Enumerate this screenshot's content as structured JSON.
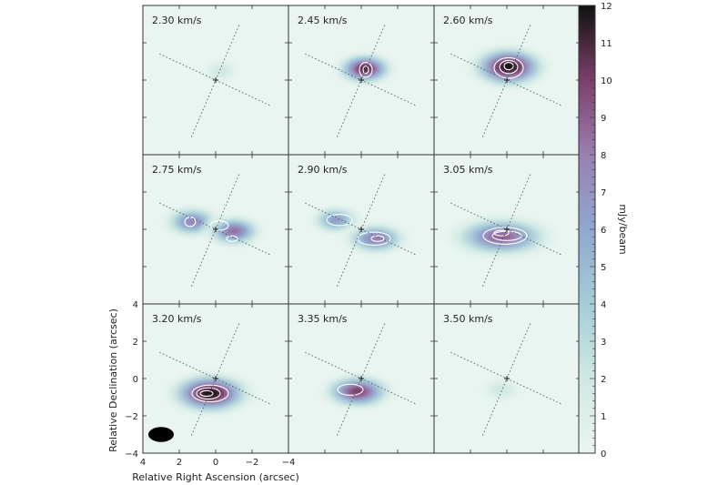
{
  "chart_data": {
    "type": "heatmap",
    "layout": "3x3 channel-map grid",
    "xlabel": "Relative Right Ascension (arcsec)",
    "ylabel": "Relative Declination (arcsec)",
    "xlim": [
      4,
      -4
    ],
    "ylim": [
      -4,
      4
    ],
    "x_ticks": [
      "4",
      "2",
      "0",
      "−2",
      "−4"
    ],
    "y_ticks": [
      "4",
      "2",
      "0",
      "−2",
      "−4"
    ],
    "colorbar": {
      "label": "mJy/beam",
      "range": [
        0,
        12
      ],
      "ticks": [
        "0",
        "1",
        "2",
        "3",
        "4",
        "5",
        "6",
        "7",
        "8",
        "9",
        "10",
        "11",
        "12"
      ],
      "colors": [
        "#eaf5f1",
        "#cfe8e4",
        "#a4cdd7",
        "#8fa7cf",
        "#9a7fb2",
        "#7d3f6b",
        "#111111"
      ]
    },
    "beam": {
      "x": 3.0,
      "y": -3.0,
      "major": 1.4,
      "minor": 0.8,
      "pa_deg": 90
    },
    "reference_lines": [
      {
        "angle_deg": 67,
        "style": "dotted"
      },
      {
        "angle_deg": -25,
        "style": "dotted"
      }
    ],
    "panels": [
      {
        "label": "2.30 km/s",
        "peak_mjy": 2.0,
        "emission": [
          {
            "x": -0.3,
            "y": 0.5,
            "sx": 0.6,
            "sy": 0.4,
            "amp": 2.0
          }
        ],
        "contours": []
      },
      {
        "label": "2.45 km/s",
        "peak_mjy": 11.0,
        "emission": [
          {
            "x": -0.2,
            "y": 0.6,
            "sx": 0.9,
            "sy": 0.5,
            "amp": 11.0
          }
        ],
        "contours": [
          {
            "x": -0.25,
            "y": 0.55,
            "rx": 0.35,
            "ry": 0.4
          },
          {
            "x": -0.25,
            "y": 0.55,
            "rx": 0.15,
            "ry": 0.2
          }
        ]
      },
      {
        "label": "2.60 km/s",
        "peak_mjy": 12.0,
        "emission": [
          {
            "x": -0.1,
            "y": 0.7,
            "sx": 1.2,
            "sy": 0.65,
            "amp": 12.0
          }
        ],
        "contours": [
          {
            "x": -0.1,
            "y": 0.65,
            "rx": 0.8,
            "ry": 0.55
          },
          {
            "x": -0.1,
            "y": 0.7,
            "rx": 0.5,
            "ry": 0.35
          },
          {
            "x": -0.1,
            "y": 0.75,
            "rx": 0.25,
            "ry": 0.2
          }
        ]
      },
      {
        "label": "2.75 km/s",
        "peak_mjy": 8.5,
        "emission": [
          {
            "x": 1.3,
            "y": 0.4,
            "sx": 0.9,
            "sy": 0.5,
            "amp": 7.5
          },
          {
            "x": -1.0,
            "y": -0.1,
            "sx": 0.9,
            "sy": 0.5,
            "amp": 8.5
          }
        ],
        "contours": [
          {
            "x": 1.4,
            "y": 0.4,
            "rx": 0.3,
            "ry": 0.25
          },
          {
            "x": -0.2,
            "y": 0.2,
            "rx": 0.5,
            "ry": 0.25
          },
          {
            "x": -0.9,
            "y": -0.5,
            "rx": 0.3,
            "ry": 0.15
          }
        ]
      },
      {
        "label": "2.90 km/s",
        "peak_mjy": 8.0,
        "emission": [
          {
            "x": 1.4,
            "y": 0.5,
            "sx": 0.8,
            "sy": 0.45,
            "amp": 6.5
          },
          {
            "x": -0.8,
            "y": -0.5,
            "sx": 1.0,
            "sy": 0.5,
            "amp": 8.0
          }
        ],
        "contours": [
          {
            "x": 1.2,
            "y": 0.5,
            "rx": 0.7,
            "ry": 0.3
          },
          {
            "x": -0.7,
            "y": -0.5,
            "rx": 0.9,
            "ry": 0.35
          },
          {
            "x": -0.9,
            "y": -0.5,
            "rx": 0.35,
            "ry": 0.15
          }
        ]
      },
      {
        "label": "3.05 km/s",
        "peak_mjy": 9.0,
        "emission": [
          {
            "x": 0.3,
            "y": -0.4,
            "sx": 1.6,
            "sy": 0.65,
            "amp": 9.0
          }
        ],
        "contours": [
          {
            "x": 0.1,
            "y": -0.35,
            "rx": 1.2,
            "ry": 0.45
          },
          {
            "x": 0.0,
            "y": -0.35,
            "rx": 0.8,
            "ry": 0.25
          },
          {
            "x": 0.3,
            "y": -0.2,
            "rx": 0.4,
            "ry": 0.15
          }
        ]
      },
      {
        "label": "3.20 km/s",
        "peak_mjy": 12.0,
        "emission": [
          {
            "x": 0.3,
            "y": -0.8,
            "sx": 1.3,
            "sy": 0.65,
            "amp": 12.0
          }
        ],
        "contours": [
          {
            "x": 0.3,
            "y": -0.8,
            "rx": 1.0,
            "ry": 0.45
          },
          {
            "x": 0.4,
            "y": -0.8,
            "rx": 0.65,
            "ry": 0.3
          },
          {
            "x": 0.5,
            "y": -0.8,
            "rx": 0.35,
            "ry": 0.15
          }
        ]
      },
      {
        "label": "3.35 km/s",
        "peak_mjy": 10.0,
        "emission": [
          {
            "x": 0.2,
            "y": -0.7,
            "sx": 1.1,
            "sy": 0.55,
            "amp": 10.0
          }
        ],
        "contours": [
          {
            "x": 0.6,
            "y": -0.6,
            "rx": 0.7,
            "ry": 0.3
          }
        ]
      },
      {
        "label": "3.50 km/s",
        "peak_mjy": 2.0,
        "emission": [
          {
            "x": 0.3,
            "y": -0.6,
            "sx": 0.7,
            "sy": 0.4,
            "amp": 2.0
          }
        ],
        "contours": []
      }
    ]
  }
}
